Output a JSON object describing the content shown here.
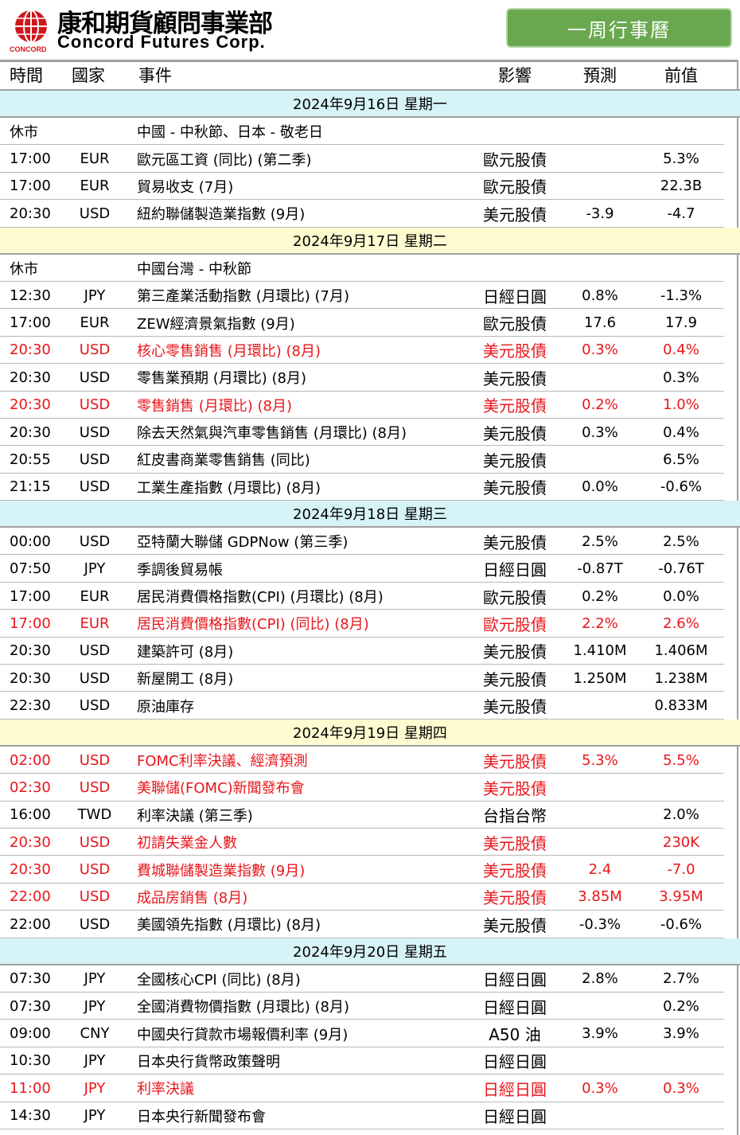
{
  "brand": {
    "name_cn": "康和期貨顧問事業部",
    "name_en": "Concord Futures Corp.",
    "mark_text": "CONCORD",
    "colors": {
      "red": "#d0161b",
      "green": "#6aa84f"
    }
  },
  "header_button": "一周行事曆",
  "columns": {
    "time": "時間",
    "country": "國家",
    "event": "事件",
    "impact": "影響",
    "forecast": "預測",
    "previous": "前值"
  },
  "days": [
    {
      "label": "2024年9月16日   星期一",
      "bg": "cyan",
      "rows": [
        {
          "time": "休市",
          "cur": "",
          "event": "中國 - 中秋節、日本 - 敬老日",
          "impact": "",
          "fc": "",
          "pv": "",
          "red": false
        },
        {
          "time": "17:00",
          "cur": "EUR",
          "event": "歐元區工資 (同比) (第二季)",
          "impact": "歐元股債",
          "fc": "",
          "pv": "5.3%",
          "red": false
        },
        {
          "time": "17:00",
          "cur": "EUR",
          "event": "貿易收支 (7月)",
          "impact": "歐元股債",
          "fc": "",
          "pv": "22.3B",
          "red": false
        },
        {
          "time": "20:30",
          "cur": "USD",
          "event": "紐約聯儲製造業指數 (9月)",
          "impact": "美元股債",
          "fc": "-3.9",
          "pv": "-4.7",
          "red": false
        }
      ]
    },
    {
      "label": "2024年9月17日   星期二",
      "bg": "yellow",
      "rows": [
        {
          "time": "休市",
          "cur": "",
          "event": "中國台灣 - 中秋節",
          "impact": "",
          "fc": "",
          "pv": "",
          "red": false
        },
        {
          "time": "12:30",
          "cur": "JPY",
          "event": "第三產業活動指數 (月環比) (7月)",
          "impact": "日經日圓",
          "fc": "0.8%",
          "pv": "-1.3%",
          "red": false
        },
        {
          "time": "17:00",
          "cur": "EUR",
          "event": "ZEW經濟景氣指數 (9月)",
          "impact": "歐元股債",
          "fc": "17.6",
          "pv": "17.9",
          "red": false
        },
        {
          "time": "20:30",
          "cur": "USD",
          "event": "核心零售銷售 (月環比) (8月)",
          "impact": "美元股債",
          "fc": "0.3%",
          "pv": "0.4%",
          "red": true
        },
        {
          "time": "20:30",
          "cur": "USD",
          "event": "零售業預期 (月環比) (8月)",
          "impact": "美元股債",
          "fc": "",
          "pv": "0.3%",
          "red": false
        },
        {
          "time": "20:30",
          "cur": "USD",
          "event": "零售銷售 (月環比) (8月)",
          "impact": "美元股債",
          "fc": "0.2%",
          "pv": "1.0%",
          "red": true
        },
        {
          "time": "20:30",
          "cur": "USD",
          "event": "除去天然氣與汽車零售銷售 (月環比) (8月)",
          "impact": "美元股債",
          "fc": "0.3%",
          "pv": "0.4%",
          "red": false
        },
        {
          "time": "20:55",
          "cur": "USD",
          "event": "紅皮書商業零售銷售 (同比)",
          "impact": "美元股債",
          "fc": "",
          "pv": "6.5%",
          "red": false
        },
        {
          "time": "21:15",
          "cur": "USD",
          "event": "工業生產指數 (月環比) (8月)",
          "impact": "美元股債",
          "fc": "0.0%",
          "pv": "-0.6%",
          "red": false
        }
      ]
    },
    {
      "label": "2024年9月18日   星期三",
      "bg": "cyan",
      "rows": [
        {
          "time": "00:00",
          "cur": "USD",
          "event": "亞特蘭大聯儲 GDPNow (第三季)",
          "impact": "美元股債",
          "fc": "2.5%",
          "pv": "2.5%",
          "red": false
        },
        {
          "time": "07:50",
          "cur": "JPY",
          "event": "季調後貿易帳",
          "impact": "日經日圓",
          "fc": "-0.87T",
          "pv": "-0.76T",
          "red": false
        },
        {
          "time": "17:00",
          "cur": "EUR",
          "event": "居民消費價格指數(CPI) (月環比) (8月)",
          "impact": "歐元股債",
          "fc": "0.2%",
          "pv": "0.0%",
          "red": false
        },
        {
          "time": "17:00",
          "cur": "EUR",
          "event": "居民消費價格指數(CPI) (同比) (8月)",
          "impact": "歐元股債",
          "fc": "2.2%",
          "pv": "2.6%",
          "red": true
        },
        {
          "time": "20:30",
          "cur": "USD",
          "event": "建築許可 (8月)",
          "impact": "美元股債",
          "fc": "1.410M",
          "pv": "1.406M",
          "red": false
        },
        {
          "time": "20:30",
          "cur": "USD",
          "event": "新屋開工 (8月)",
          "impact": "美元股債",
          "fc": "1.250M",
          "pv": "1.238M",
          "red": false
        },
        {
          "time": "22:30",
          "cur": "USD",
          "event": "原油庫存",
          "impact": "美元股債",
          "fc": "",
          "pv": "0.833M",
          "red": false
        }
      ]
    },
    {
      "label": "2024年9月19日   星期四",
      "bg": "yellow",
      "rows": [
        {
          "time": "02:00",
          "cur": "USD",
          "event": "FOMC利率決議、經濟預測",
          "impact": "美元股債",
          "fc": "5.3%",
          "pv": "5.5%",
          "red": true
        },
        {
          "time": "02:30",
          "cur": "USD",
          "event": "美聯儲(FOMC)新聞發布會",
          "impact": "美元股債",
          "fc": "",
          "pv": "",
          "red": true
        },
        {
          "time": "16:00",
          "cur": "TWD",
          "event": "利率決議 (第三季)",
          "impact": "台指台幣",
          "fc": "",
          "pv": "2.0%",
          "red": false
        },
        {
          "time": "20:30",
          "cur": "USD",
          "event": "初請失業金人數",
          "impact": "美元股債",
          "fc": "",
          "pv": "230K",
          "red": true
        },
        {
          "time": "20:30",
          "cur": "USD",
          "event": "費城聯儲製造業指數 (9月)",
          "impact": "美元股債",
          "fc": "2.4",
          "pv": "-7.0",
          "red": true
        },
        {
          "time": "22:00",
          "cur": "USD",
          "event": "成品房銷售 (8月)",
          "impact": "美元股債",
          "fc": "3.85M",
          "pv": "3.95M",
          "red": true
        },
        {
          "time": "22:00",
          "cur": "USD",
          "event": "美國領先指數 (月環比) (8月)",
          "impact": "美元股債",
          "fc": "-0.3%",
          "pv": "-0.6%",
          "red": false
        }
      ]
    },
    {
      "label": "2024年9月20日   星期五",
      "bg": "cyan",
      "rows": [
        {
          "time": "07:30",
          "cur": "JPY",
          "event": "全國核心CPI (同比) (8月)",
          "impact": "日經日圓",
          "fc": "2.8%",
          "pv": "2.7%",
          "red": false
        },
        {
          "time": "07:30",
          "cur": "JPY",
          "event": "全國消費物價指數 (月環比) (8月)",
          "impact": "日經日圓",
          "fc": "",
          "pv": "0.2%",
          "red": false
        },
        {
          "time": "09:00",
          "cur": "CNY",
          "event": "中國央行貸款市場報價利率 (9月)",
          "impact": "A50 油",
          "fc": "3.9%",
          "pv": "3.9%",
          "red": false
        },
        {
          "time": "10:30",
          "cur": "JPY",
          "event": "日本央行貨幣政策聲明",
          "impact": "日經日圓",
          "fc": "",
          "pv": "",
          "red": false
        },
        {
          "time": "11:00",
          "cur": "JPY",
          "event": "利率決議",
          "impact": "日經日圓",
          "fc": "0.3%",
          "pv": "0.3%",
          "red": true
        },
        {
          "time": "14:30",
          "cur": "JPY",
          "event": "日本央行新聞發布會",
          "impact": "日經日圓",
          "fc": "",
          "pv": "",
          "red": false
        }
      ]
    }
  ]
}
